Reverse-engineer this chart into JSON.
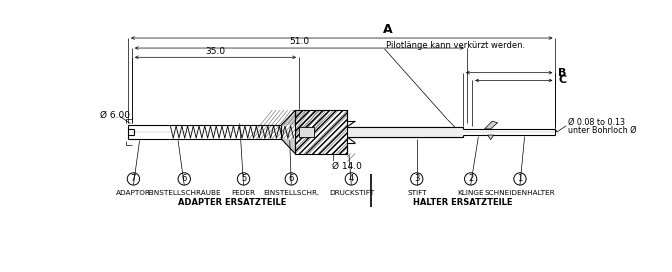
{
  "bg_color": "#ffffff",
  "line_color": "#000000",
  "labels": {
    "A": "A",
    "B": "B",
    "C": "C",
    "dim_510": "51.0",
    "dim_350": "35.0",
    "dim_600": "Ø 6.00",
    "dim_140": "Ø 14.0",
    "dim_008_013": "Ø 0.08 to 0.13",
    "note_pilot": "Pilotlänge kann verkürzt werden.",
    "note_unter": "unter Bohrloch Ø",
    "part1": "SCHNEIDENHALTER",
    "part2": "KLINGE",
    "part3": "STIFT",
    "part4": "DRUCKSTIFT",
    "part5": "FEDER",
    "part6a": "EINSTELLSCHRAUBE",
    "part6b": "EINSTELLSCHR.",
    "part7": "ADAPTOR",
    "group_left": "ADAPTER ERSATZTEILE",
    "group_right": "HALTER ERSATZTEILE"
  }
}
